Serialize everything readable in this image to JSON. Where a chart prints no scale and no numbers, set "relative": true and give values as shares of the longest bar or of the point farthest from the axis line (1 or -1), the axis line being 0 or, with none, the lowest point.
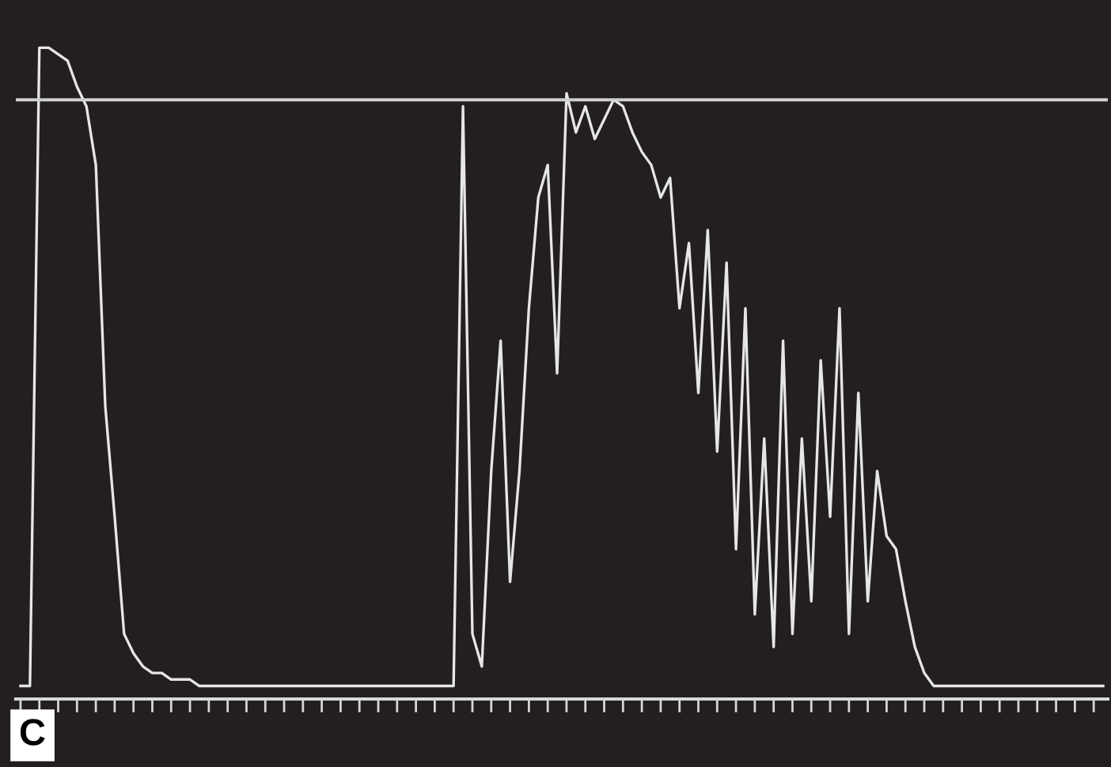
{
  "chart_data": {
    "type": "line",
    "relative": true,
    "grid": false,
    "legend": false,
    "marker": "none",
    "line_style": "solid",
    "categories": [
      null,
      null,
      null,
      null,
      null,
      null,
      null,
      null,
      null,
      null,
      null,
      null,
      null,
      null,
      null,
      null,
      null,
      null,
      null,
      null,
      null,
      null,
      null,
      null,
      null,
      null,
      null,
      null,
      null,
      null,
      null,
      null,
      null,
      null,
      null,
      null,
      null,
      null,
      null,
      null,
      null,
      null,
      null,
      null,
      null,
      null,
      null,
      null,
      null,
      null,
      null,
      null,
      null,
      null,
      null,
      null,
      null,
      null,
      null,
      null,
      null,
      null,
      null,
      null,
      null,
      null,
      null,
      null,
      null,
      null,
      null,
      null,
      null,
      null,
      null,
      null,
      null,
      null,
      null,
      null,
      null,
      null,
      null,
      null,
      null,
      null,
      null,
      null,
      null,
      null,
      null,
      null,
      null,
      null,
      null,
      null,
      null,
      null,
      null,
      null,
      null,
      null,
      null,
      null,
      null,
      null,
      null,
      null,
      null,
      null,
      null,
      null,
      null,
      null,
      null,
      null
    ],
    "series": [
      {
        "color": "#e6e6e6",
        "values": [
          0.02,
          0.02,
          1.0,
          1.0,
          0.99,
          0.98,
          0.94,
          0.91,
          0.82,
          0.45,
          0.28,
          0.1,
          0.07,
          0.05,
          0.04,
          0.04,
          0.03,
          0.03,
          0.03,
          0.02,
          0.02,
          0.02,
          0.02,
          0.02,
          0.02,
          0.02,
          0.02,
          0.02,
          0.02,
          0.02,
          0.02,
          0.02,
          0.02,
          0.02,
          0.02,
          0.02,
          0.02,
          0.02,
          0.02,
          0.02,
          0.02,
          0.02,
          0.02,
          0.02,
          0.02,
          0.02,
          0.02,
          0.91,
          0.1,
          0.05,
          0.35,
          0.55,
          0.18,
          0.35,
          0.6,
          0.77,
          0.82,
          0.5,
          0.93,
          0.87,
          0.91,
          0.86,
          0.89,
          0.92,
          0.91,
          0.87,
          0.84,
          0.82,
          0.77,
          0.8,
          0.6,
          0.7,
          0.47,
          0.72,
          0.38,
          0.67,
          0.23,
          0.6,
          0.13,
          0.4,
          0.08,
          0.55,
          0.1,
          0.4,
          0.15,
          0.52,
          0.28,
          0.6,
          0.1,
          0.47,
          0.15,
          0.35,
          0.25,
          0.23,
          0.15,
          0.08,
          0.04,
          0.02,
          0.02,
          0.02,
          0.02,
          0.02,
          0.02,
          0.02,
          0.02,
          0.02,
          0.02,
          0.02,
          0.02,
          0.02,
          0.02,
          0.02,
          0.02,
          0.02,
          0.02,
          0.02
        ]
      }
    ],
    "ref_lines": [
      {
        "axis": "y",
        "value": 0.92,
        "color": "#d0d0d0",
        "line_style": "solid"
      }
    ],
    "annotations": [
      "C"
    ]
  }
}
